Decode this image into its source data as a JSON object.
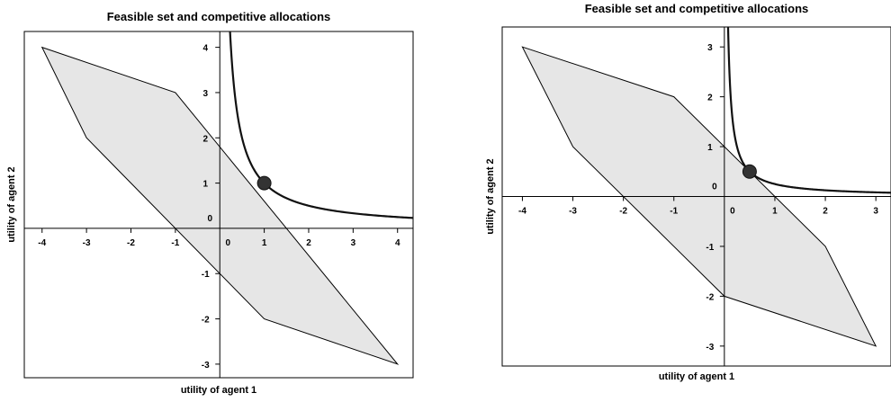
{
  "chart_data": [
    {
      "type": "area",
      "title": "Feasible set and competitive allocations",
      "xlabel": "utility of agent 1",
      "ylabel": "utility of agent 2",
      "xlim": [
        -4.4,
        4.35
      ],
      "ylim": [
        -3.3,
        4.35
      ],
      "xticks": [
        -4,
        -3,
        -2,
        -1,
        0,
        1,
        2,
        3,
        4
      ],
      "yticks": [
        -3,
        -2,
        -1,
        0,
        1,
        2,
        3,
        4
      ],
      "origin_label": "0",
      "grid": false,
      "feasible_set": [
        [
          -4,
          4
        ],
        [
          -1,
          3
        ],
        [
          4,
          -3
        ],
        [
          1,
          -2
        ],
        [
          -3,
          2
        ]
      ],
      "hyperbola_product": 1,
      "competitive_point": {
        "x": 1,
        "y": 1
      }
    },
    {
      "type": "area",
      "title": "Feasible set and competitive allocations",
      "xlabel": "utility of agent 1",
      "ylabel": "utility of agent 2",
      "xlim": [
        -4.4,
        3.3
      ],
      "ylim": [
        -3.4,
        3.4
      ],
      "xticks": [
        -4,
        -3,
        -2,
        -1,
        0,
        1,
        2,
        3
      ],
      "yticks": [
        -3,
        -2,
        -1,
        0,
        1,
        2,
        3
      ],
      "origin_label": "0",
      "grid": false,
      "feasible_set": [
        [
          -4,
          3
        ],
        [
          -1,
          2
        ],
        [
          2,
          -1
        ],
        [
          3,
          -3
        ],
        [
          0,
          -2
        ],
        [
          -3,
          1
        ]
      ],
      "hyperbola_product": 0.25,
      "competitive_point": {
        "x": 0.5,
        "y": 0.5
      }
    }
  ]
}
